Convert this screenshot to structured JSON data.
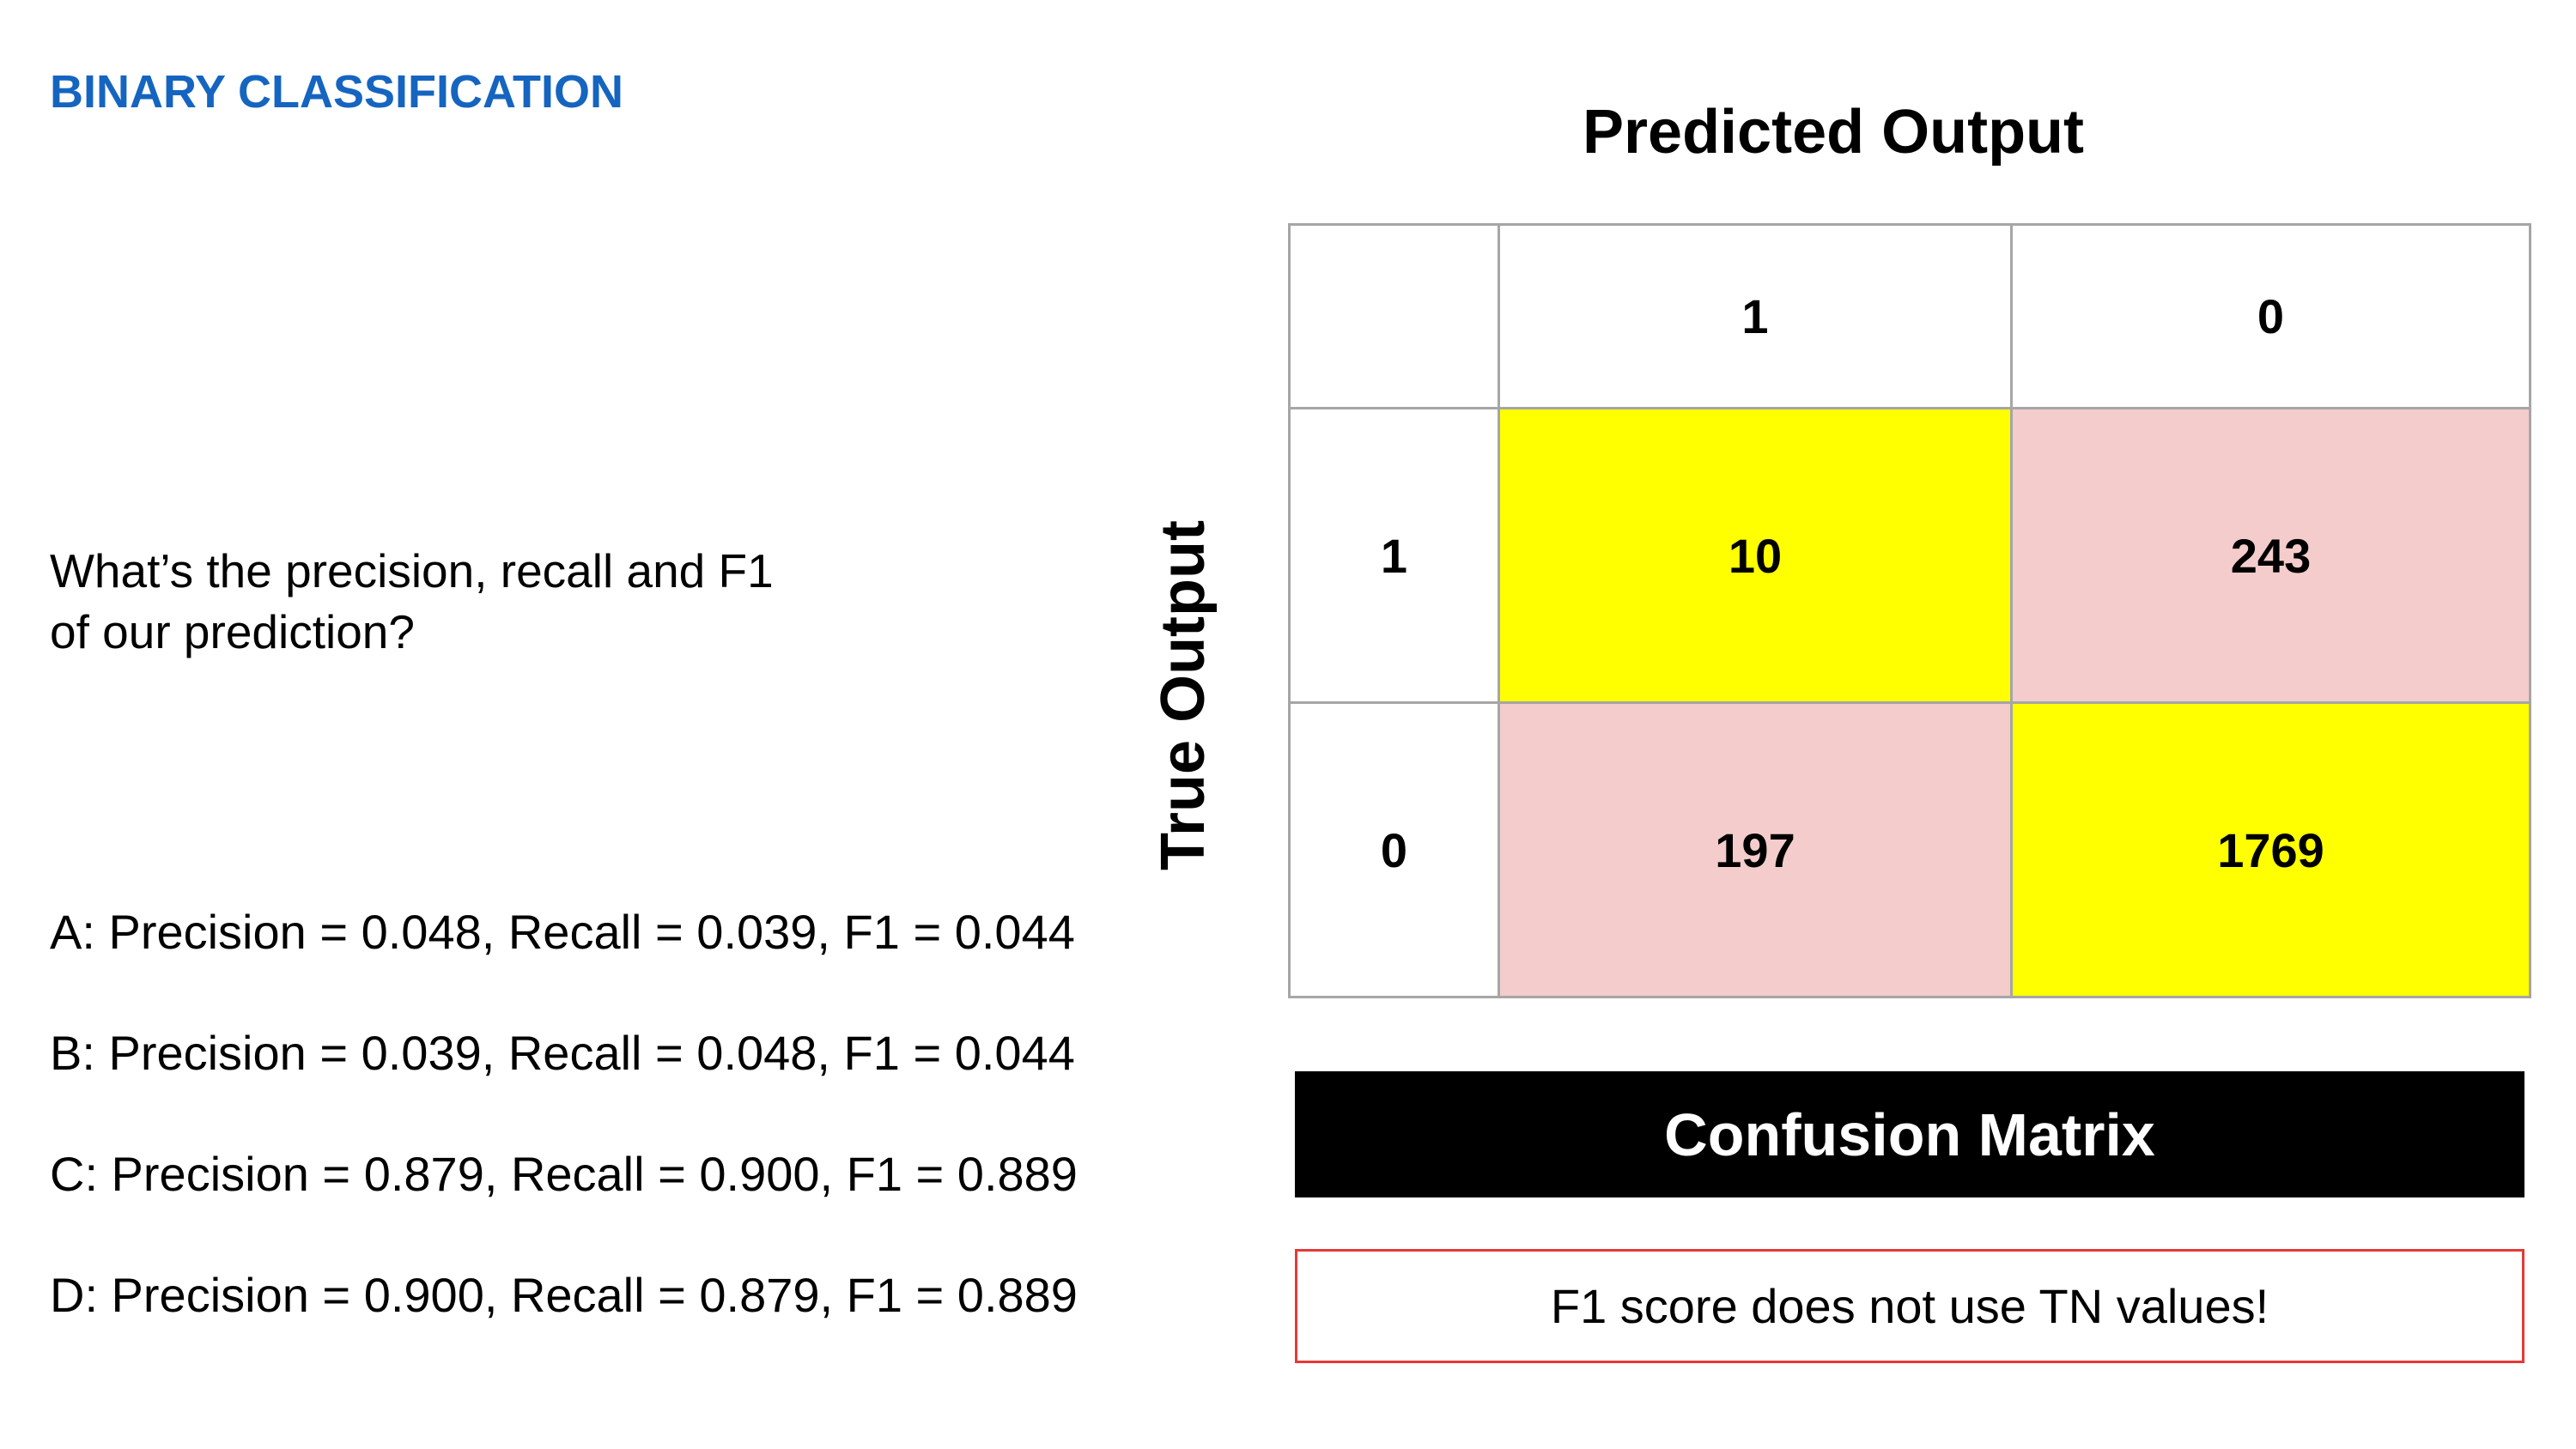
{
  "slide": {
    "section_title": "BINARY CLASSIFICATION",
    "question_lines": [
      "What’s the precision, recall and F1",
      "of our prediction?"
    ],
    "options": [
      "A: Precision = 0.048, Recall = 0.039, F1 = 0.044",
      "B: Precision = 0.039, Recall = 0.048, F1 = 0.044",
      "C: Precision = 0.879, Recall = 0.900, F1 = 0.889",
      "D: Precision = 0.900, Recall = 0.879, F1 = 0.889"
    ]
  },
  "matrix": {
    "predicted_label": "Predicted Output",
    "true_label": "True Output",
    "column_headers": [
      "1",
      "0"
    ],
    "rows": [
      {
        "label": "1",
        "values": [
          "10",
          "243"
        ]
      },
      {
        "label": "0",
        "values": [
          "197",
          "1769"
        ]
      }
    ],
    "caption": "Confusion Matrix",
    "note": "F1 score does not use TN values!",
    "colors": {
      "correct": "#ffff00",
      "incorrect": "#f4cccc",
      "title": "#1565c0",
      "note_border": "#e53935"
    }
  }
}
